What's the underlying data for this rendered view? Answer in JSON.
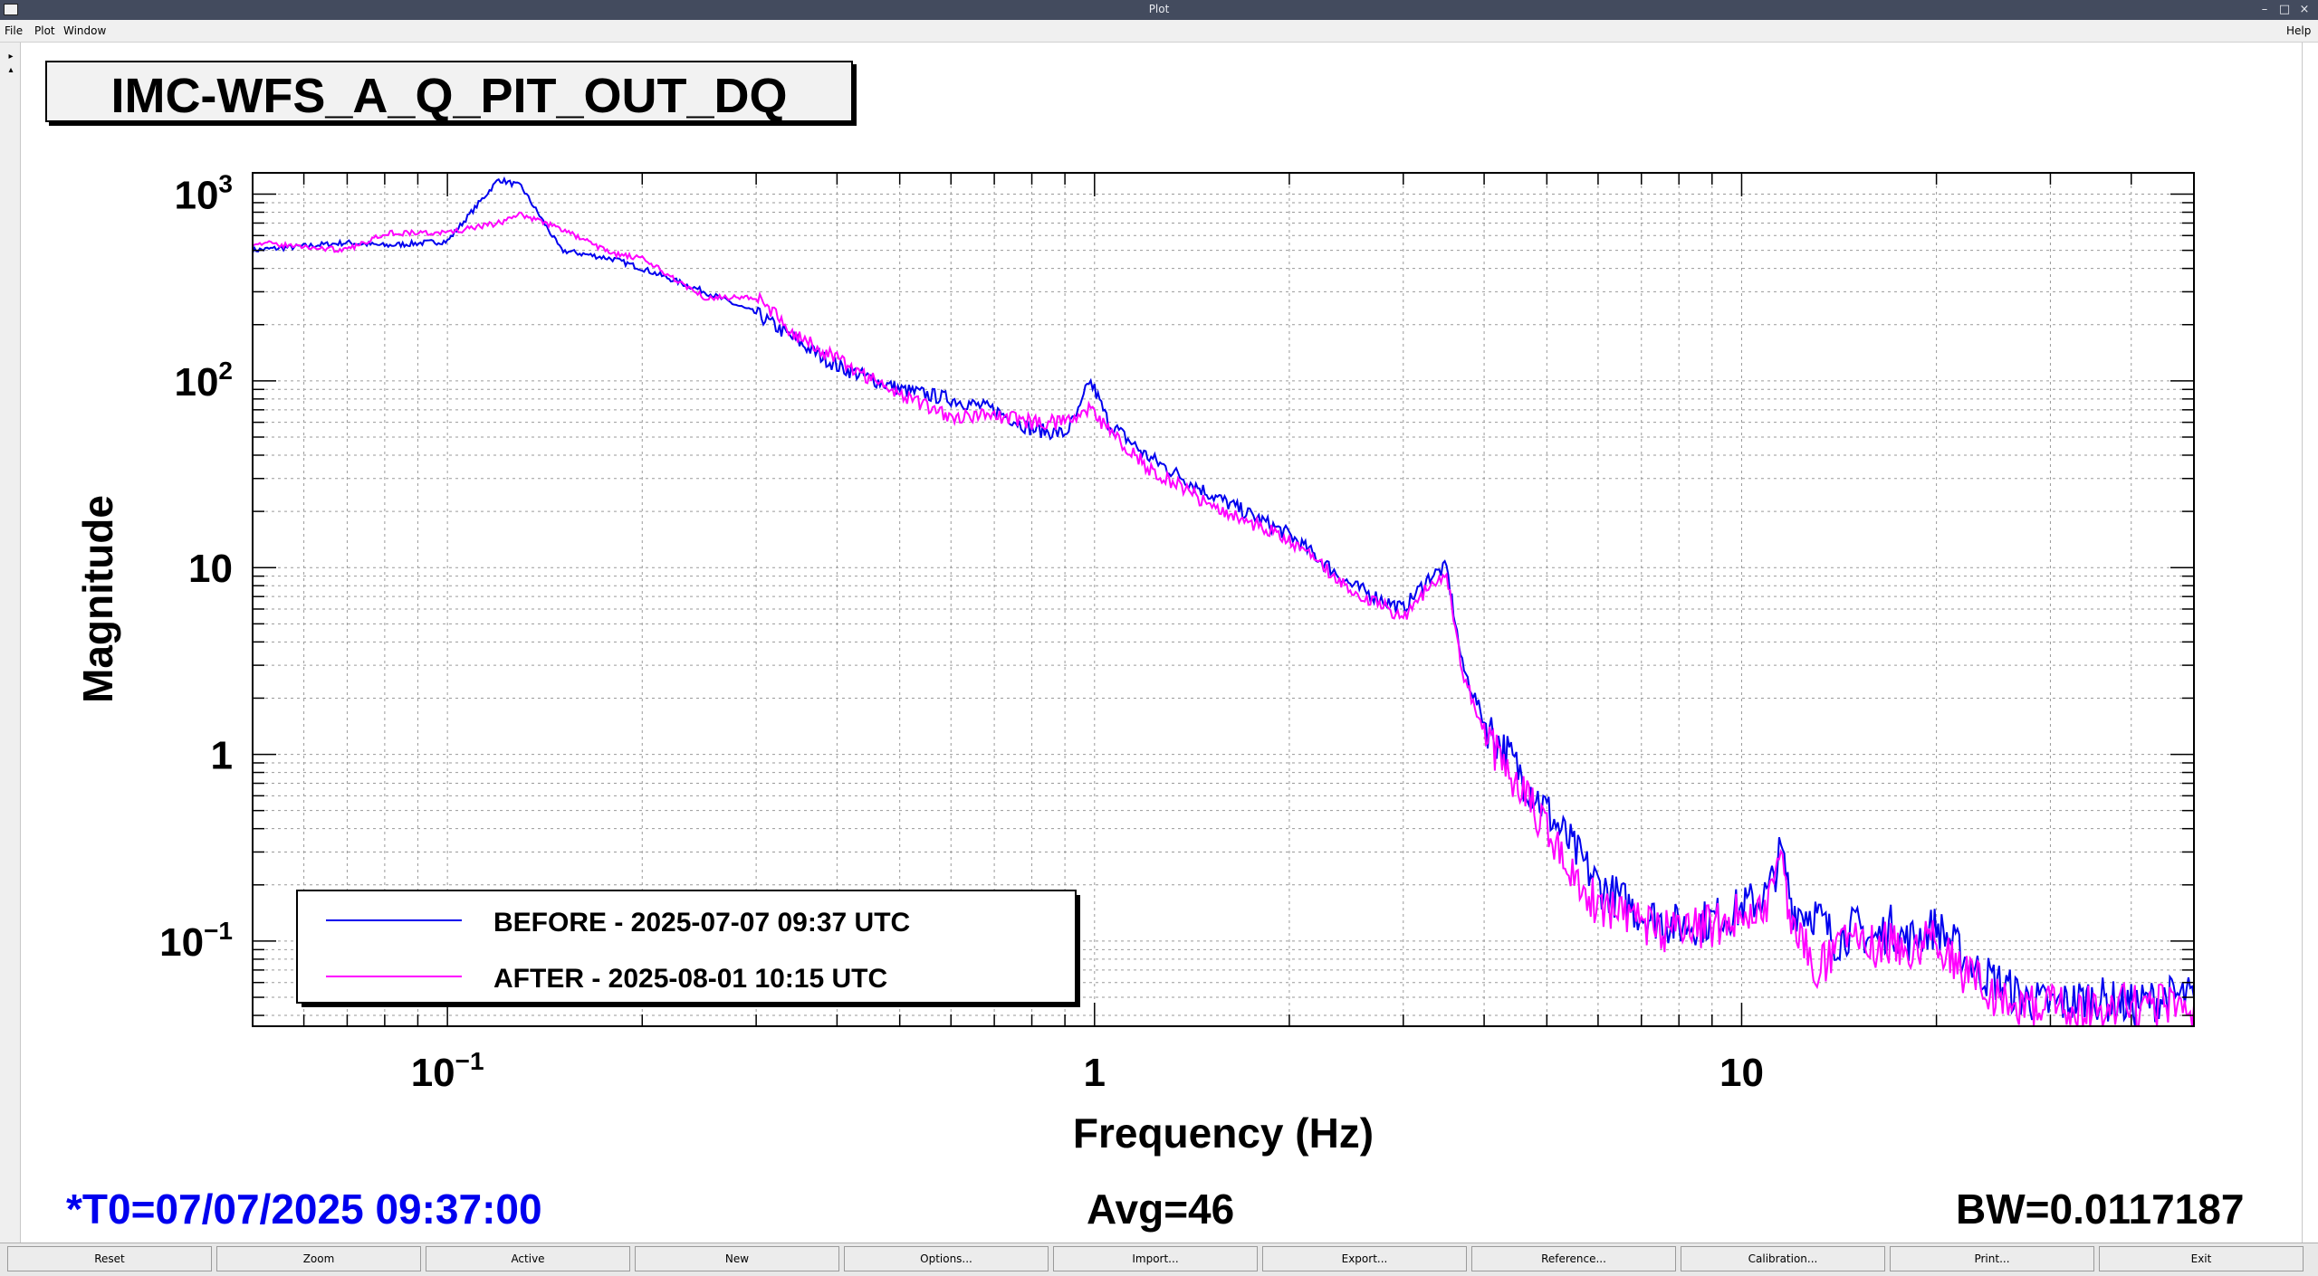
{
  "window": {
    "title": "Plot"
  },
  "menu": {
    "file": "File",
    "plot": "Plot",
    "window": "Window",
    "help": "Help"
  },
  "plot_title": "IMC-WFS_A_Q_PIT_OUT_DQ",
  "footer": {
    "t0": "*T0=07/07/2025 09:37:00",
    "avg": "Avg=46",
    "bw": "BW=0.0117187"
  },
  "buttons": [
    "Reset",
    "Zoom",
    "Active",
    "New",
    "Options...",
    "Import...",
    "Export...",
    "Reference...",
    "Calibration...",
    "Print...",
    "Exit"
  ],
  "colors": {
    "before": "#0000ee",
    "after": "#ff00ff",
    "footer_t0": "#0000ee",
    "titlebar": "#434b5e"
  },
  "chart_data": {
    "type": "line",
    "title": "IMC-WFS_A_Q_PIT_OUT_DQ",
    "xlabel": "Frequency (Hz)",
    "ylabel": "Magnitude",
    "x_scale": "log",
    "y_scale": "log",
    "xlim": [
      0.05,
      50
    ],
    "ylim": [
      0.035,
      1300
    ],
    "x_ticks": [
      {
        "value": 0.1,
        "base": "10",
        "exp": "−1"
      },
      {
        "value": 1,
        "base": "1",
        "exp": ""
      },
      {
        "value": 10,
        "base": "10",
        "exp": ""
      }
    ],
    "y_ticks": [
      {
        "value": 1000,
        "base": "10",
        "exp": "3"
      },
      {
        "value": 100,
        "base": "10",
        "exp": "2"
      },
      {
        "value": 10,
        "base": "10",
        "exp": ""
      },
      {
        "value": 1,
        "base": "1",
        "exp": ""
      },
      {
        "value": 0.1,
        "base": "10",
        "exp": "−1"
      }
    ],
    "grid": true,
    "legend_position": "bottom-left",
    "series": [
      {
        "name": "BEFORE - 2025-07-07 09:37 UTC",
        "color": "#0000ee",
        "x": [
          0.05,
          0.07,
          0.08,
          0.1,
          0.12,
          0.13,
          0.15,
          0.18,
          0.2,
          0.25,
          0.3,
          0.35,
          0.4,
          0.5,
          0.6,
          0.7,
          0.8,
          0.9,
          0.95,
          0.98,
          1.0,
          1.05,
          1.2,
          1.5,
          2.0,
          2.5,
          3.0,
          3.3,
          3.5,
          3.7,
          4.0,
          5.0,
          6.0,
          7.0,
          8.0,
          9.0,
          10.0,
          11.0,
          11.5,
          12.0,
          13.0,
          14.0,
          15.0,
          16.0,
          17.0,
          18.0,
          19.0,
          20.0,
          21.0,
          23.0,
          25.0,
          27.0,
          30.0,
          35.0,
          40.0,
          45.0,
          50.0
        ],
        "y": [
          500,
          550,
          530,
          560,
          1200,
          1100,
          500,
          450,
          400,
          300,
          230,
          160,
          120,
          90,
          80,
          70,
          55,
          52,
          70,
          100,
          90,
          60,
          40,
          25,
          15,
          8,
          6,
          9,
          10,
          3,
          1.5,
          0.5,
          0.2,
          0.14,
          0.12,
          0.13,
          0.15,
          0.18,
          0.3,
          0.15,
          0.14,
          0.1,
          0.12,
          0.1,
          0.12,
          0.1,
          0.11,
          0.12,
          0.1,
          0.07,
          0.06,
          0.05,
          0.045,
          0.05,
          0.045,
          0.05,
          0.05
        ]
      },
      {
        "name": "AFTER - 2025-08-01 10:15 UTC",
        "color": "#ff00ff",
        "x": [
          0.05,
          0.07,
          0.08,
          0.1,
          0.12,
          0.13,
          0.15,
          0.18,
          0.2,
          0.25,
          0.3,
          0.35,
          0.4,
          0.5,
          0.6,
          0.7,
          0.8,
          0.9,
          0.95,
          0.98,
          1.0,
          1.05,
          1.2,
          1.5,
          2.0,
          2.5,
          3.0,
          3.3,
          3.5,
          3.7,
          4.0,
          5.0,
          6.0,
          7.0,
          8.0,
          9.0,
          10.0,
          11.0,
          11.5,
          12.0,
          13.0,
          14.0,
          15.0,
          16.0,
          17.0,
          18.0,
          19.0,
          20.0,
          21.0,
          23.0,
          25.0,
          27.0,
          30.0,
          35.0,
          40.0,
          45.0,
          50.0
        ],
        "y": [
          550,
          500,
          620,
          620,
          700,
          780,
          650,
          480,
          450,
          280,
          280,
          170,
          130,
          85,
          65,
          65,
          60,
          60,
          65,
          70,
          65,
          55,
          35,
          22,
          14,
          7.5,
          5.5,
          8,
          9.5,
          2.8,
          1.3,
          0.4,
          0.15,
          0.12,
          0.11,
          0.12,
          0.14,
          0.16,
          0.25,
          0.13,
          0.07,
          0.09,
          0.12,
          0.09,
          0.1,
          0.09,
          0.1,
          0.11,
          0.08,
          0.06,
          0.05,
          0.045,
          0.045,
          0.045,
          0.045,
          0.045,
          0.045
        ]
      }
    ]
  }
}
